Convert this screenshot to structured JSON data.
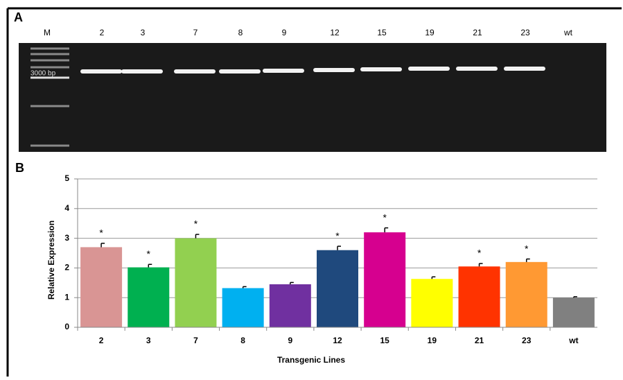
{
  "panel_a": {
    "label": "A",
    "lanes": [
      "M",
      "2",
      "3",
      "7",
      "8",
      "9",
      "12",
      "15",
      "19",
      "21",
      "23",
      "wt"
    ],
    "marker_label": "3000 bp"
  },
  "chart_data": {
    "type": "bar",
    "panel_label": "B",
    "x_label": "Transgenic Lines",
    "y_label": "Relative Expression",
    "categories": [
      "2",
      "3",
      "7",
      "8",
      "9",
      "12",
      "15",
      "19",
      "21",
      "23",
      "wt"
    ],
    "values": [
      2.7,
      2.02,
      3.0,
      1.32,
      1.45,
      2.6,
      3.2,
      1.63,
      2.05,
      2.2,
      1.0
    ],
    "errors": [
      0.13,
      0.1,
      0.13,
      0.05,
      0.06,
      0.13,
      0.15,
      0.07,
      0.1,
      0.1,
      0.03
    ],
    "significance": [
      "*",
      "*",
      "*",
      null,
      null,
      "*",
      "*",
      null,
      "*",
      "*",
      null
    ],
    "colors": [
      "#d99594",
      "#00b050",
      "#92d050",
      "#00b0f0",
      "#7030a0",
      "#1f497d",
      "#d6008f",
      "#ffff00",
      "#ff3300",
      "#ff9933",
      "#808080"
    ],
    "ylim": [
      0,
      5
    ],
    "yticks": [
      0,
      1,
      2,
      3,
      4,
      5
    ],
    "grid": true
  }
}
